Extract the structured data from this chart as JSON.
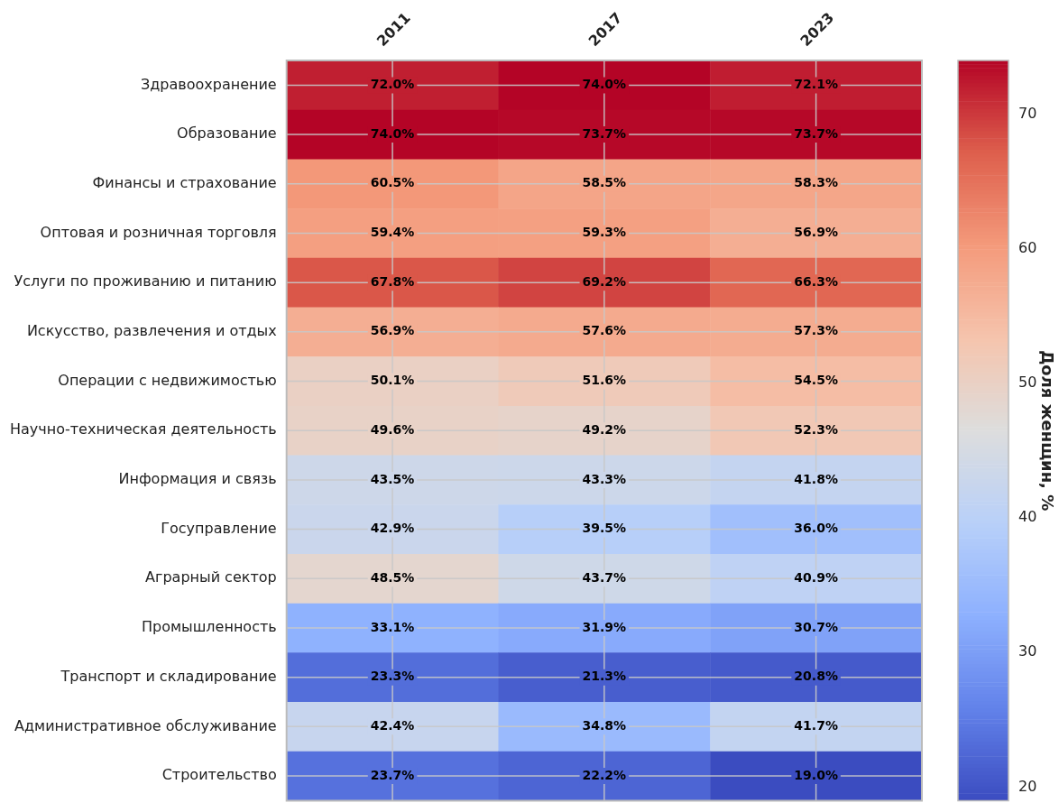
{
  "chart_data": {
    "type": "heatmap",
    "categories": [
      "2011",
      "2017",
      "2023"
    ],
    "y_categories": [
      "Здравоохранение",
      "Образование",
      "Финансы и страхование",
      "Оптовая и розничная торговля",
      "Услуги по проживанию и питанию",
      "Искусство, развлечения и отдых",
      "Операции с недвижимостью",
      "Научно-техническая деятельность",
      "Информация и связь",
      "Госуправление",
      "Аграрный сектор",
      "Промышленность",
      "Транспорт и складирование",
      "Административное обслуживание",
      "Строительство"
    ],
    "cells": [
      [
        72.0,
        74.0,
        72.1
      ],
      [
        74.0,
        73.7,
        73.7
      ],
      [
        60.5,
        58.5,
        58.3
      ],
      [
        59.4,
        59.3,
        56.9
      ],
      [
        67.8,
        69.2,
        66.3
      ],
      [
        56.9,
        57.6,
        57.3
      ],
      [
        50.1,
        51.6,
        54.5
      ],
      [
        49.6,
        49.2,
        52.3
      ],
      [
        43.5,
        43.3,
        41.8
      ],
      [
        42.9,
        39.5,
        36.0
      ],
      [
        48.5,
        43.7,
        40.9
      ],
      [
        33.1,
        31.9,
        30.7
      ],
      [
        23.3,
        21.3,
        20.8
      ],
      [
        42.4,
        34.8,
        41.7
      ],
      [
        23.7,
        22.2,
        19.0
      ]
    ],
    "cell_labels": [
      [
        "72.0%",
        "74.0%",
        "72.1%"
      ],
      [
        "74.0%",
        "73.7%",
        "73.7%"
      ],
      [
        "60.5%",
        "58.5%",
        "58.3%"
      ],
      [
        "59.4%",
        "59.3%",
        "56.9%"
      ],
      [
        "67.8%",
        "69.2%",
        "66.3%"
      ],
      [
        "56.9%",
        "57.6%",
        "57.3%"
      ],
      [
        "50.1%",
        "51.6%",
        "54.5%"
      ],
      [
        "49.6%",
        "49.2%",
        "52.3%"
      ],
      [
        "43.5%",
        "43.3%",
        "41.8%"
      ],
      [
        "42.9%",
        "39.5%",
        "36.0%"
      ],
      [
        "48.5%",
        "43.7%",
        "40.9%"
      ],
      [
        "33.1%",
        "31.9%",
        "30.7%"
      ],
      [
        "23.3%",
        "21.3%",
        "20.8%"
      ],
      [
        "42.4%",
        "34.8%",
        "41.7%"
      ],
      [
        "23.7%",
        "22.2%",
        "19.0%"
      ]
    ],
    "clim": [
      19.0,
      74.0
    ],
    "cticks": [
      20,
      30,
      40,
      50,
      60,
      70
    ],
    "clabel": "Доля женщин, %",
    "grid": true
  }
}
